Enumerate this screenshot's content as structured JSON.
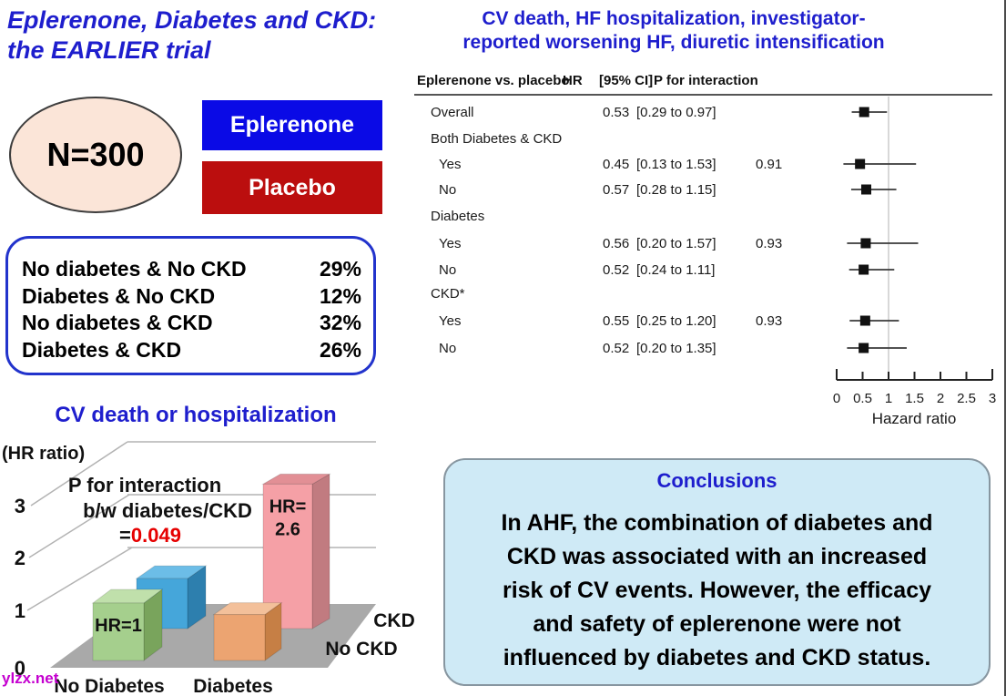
{
  "slide": {
    "title": "Eplerenone, Diabetes and CKD:\nthe EARLIER trial",
    "watermark": "ylzx.net"
  },
  "enrollment": {
    "n_label": "N=300",
    "arm1_label": "Eplerenone",
    "arm2_label": "Placebo"
  },
  "subgroups": {
    "rows": [
      {
        "label": "No diabetes & No CKD",
        "value": "29%"
      },
      {
        "label": "Diabetes & No CKD",
        "value": "12%"
      },
      {
        "label": "No diabetes & CKD",
        "value": "32%"
      },
      {
        "label": "Diabetes & CKD",
        "value": "26%"
      }
    ]
  },
  "conclusions": {
    "title": "Conclusions",
    "body": "In AHF, the combination of diabetes and\nCKD was associated with an increased\nrisk of CV events. However, the efficacy\nand safety of eplerenone were not\ninfluenced by diabetes and CKD status."
  },
  "colors": {
    "heading_blue": "#1e1ecd",
    "arm_blue": "#0a0ae6",
    "arm_red": "#bb0e0e",
    "ellipse_fill": "#fbe5d8",
    "subgroup_border": "#2233cc",
    "conclusions_bg": "#cfeaf6",
    "p_value_red": "#e60000",
    "watermark_purple": "#c400cf",
    "floor_gray": "#a9a9a9",
    "bar_green": "#a5cf8d",
    "bar_green_top": "#c0e0ab",
    "bar_green_side": "#79a45c",
    "bar_blue": "#45a6da",
    "bar_blue_top": "#6cbde7",
    "bar_blue_side": "#2d7fae",
    "bar_orange": "#eca471",
    "bar_orange_top": "#f3c09a",
    "bar_orange_side": "#c67f45",
    "bar_pink": "#f5a0a6",
    "bar_pink_top": "#e28f95",
    "bar_pink_side": "#c17b80",
    "marker_black": "#111111"
  },
  "chart_data": [
    {
      "type": "scatter",
      "subtype": "forest-plot",
      "title_lines": [
        "CV death, HF hospitalization, investigator-",
        "reported worsening HF, diuretic intensification"
      ],
      "columns": [
        "Eplerenone vs. placebo",
        "HR",
        "[95% CI]",
        "P for interaction"
      ],
      "xlabel": "Hazard ratio",
      "xlim": [
        0,
        3
      ],
      "xticks": [
        "0",
        "0.5",
        "1",
        "1.5",
        "2",
        "2.5",
        "3"
      ],
      "reference_line": 1,
      "rows": [
        {
          "label": "Overall",
          "indent": false,
          "hr": 0.53,
          "hr_text": "0.53",
          "ci": [
            0.29,
            0.97
          ],
          "ci_text": "[0.29 to 0.97]",
          "p": ""
        },
        {
          "label": "Both Diabetes & CKD",
          "group": true
        },
        {
          "label": "Yes",
          "indent": true,
          "hr": 0.45,
          "hr_text": "0.45",
          "ci": [
            0.13,
            1.53
          ],
          "ci_text": "[0.13 to 1.53]",
          "p": "0.91"
        },
        {
          "label": "No",
          "indent": true,
          "hr": 0.57,
          "hr_text": "0.57",
          "ci": [
            0.28,
            1.15
          ],
          "ci_text": "[0.28 to 1.15]",
          "p": ""
        },
        {
          "label": "Diabetes",
          "group": true
        },
        {
          "label": "Yes",
          "indent": true,
          "hr": 0.56,
          "hr_text": "0.56",
          "ci": [
            0.2,
            1.57
          ],
          "ci_text": "[0.20 to 1.57]",
          "p": "0.93"
        },
        {
          "label": "No",
          "indent": true,
          "hr": 0.52,
          "hr_text": "0.52",
          "ci": [
            0.24,
            1.11
          ],
          "ci_text": "[0.24 to 1.11]",
          "p": ""
        },
        {
          "label": "CKD*",
          "group": true
        },
        {
          "label": "Yes",
          "indent": true,
          "hr": 0.55,
          "hr_text": "0.55",
          "ci": [
            0.25,
            1.2
          ],
          "ci_text": "[0.25 to 1.20]",
          "p": "0.93"
        },
        {
          "label": "No",
          "indent": true,
          "hr": 0.52,
          "hr_text": "0.52",
          "ci": [
            0.2,
            1.35
          ],
          "ci_text": "[0.20 to 1.35]",
          "p": ""
        }
      ]
    },
    {
      "type": "bar",
      "subtype": "3d-bar",
      "title": "CV death or hospitalization",
      "ylabel": "(HR ratio)",
      "ylim": [
        0,
        3
      ],
      "yticks": [
        "0",
        "1",
        "2",
        "3"
      ],
      "categories": [
        "No Diabetes",
        "Diabetes"
      ],
      "series": [
        {
          "name": "No CKD",
          "values": [
            1.0,
            0.8
          ],
          "labels": [
            "HR=1",
            ""
          ]
        },
        {
          "name": "CKD",
          "values": [
            0.9,
            2.6
          ],
          "labels": [
            "",
            "HR=\n2.6"
          ]
        }
      ],
      "annotation": {
        "line1": "P for interaction",
        "line2": "b/w diabetes/CKD",
        "prefix": "=",
        "value": "0.049"
      }
    }
  ]
}
